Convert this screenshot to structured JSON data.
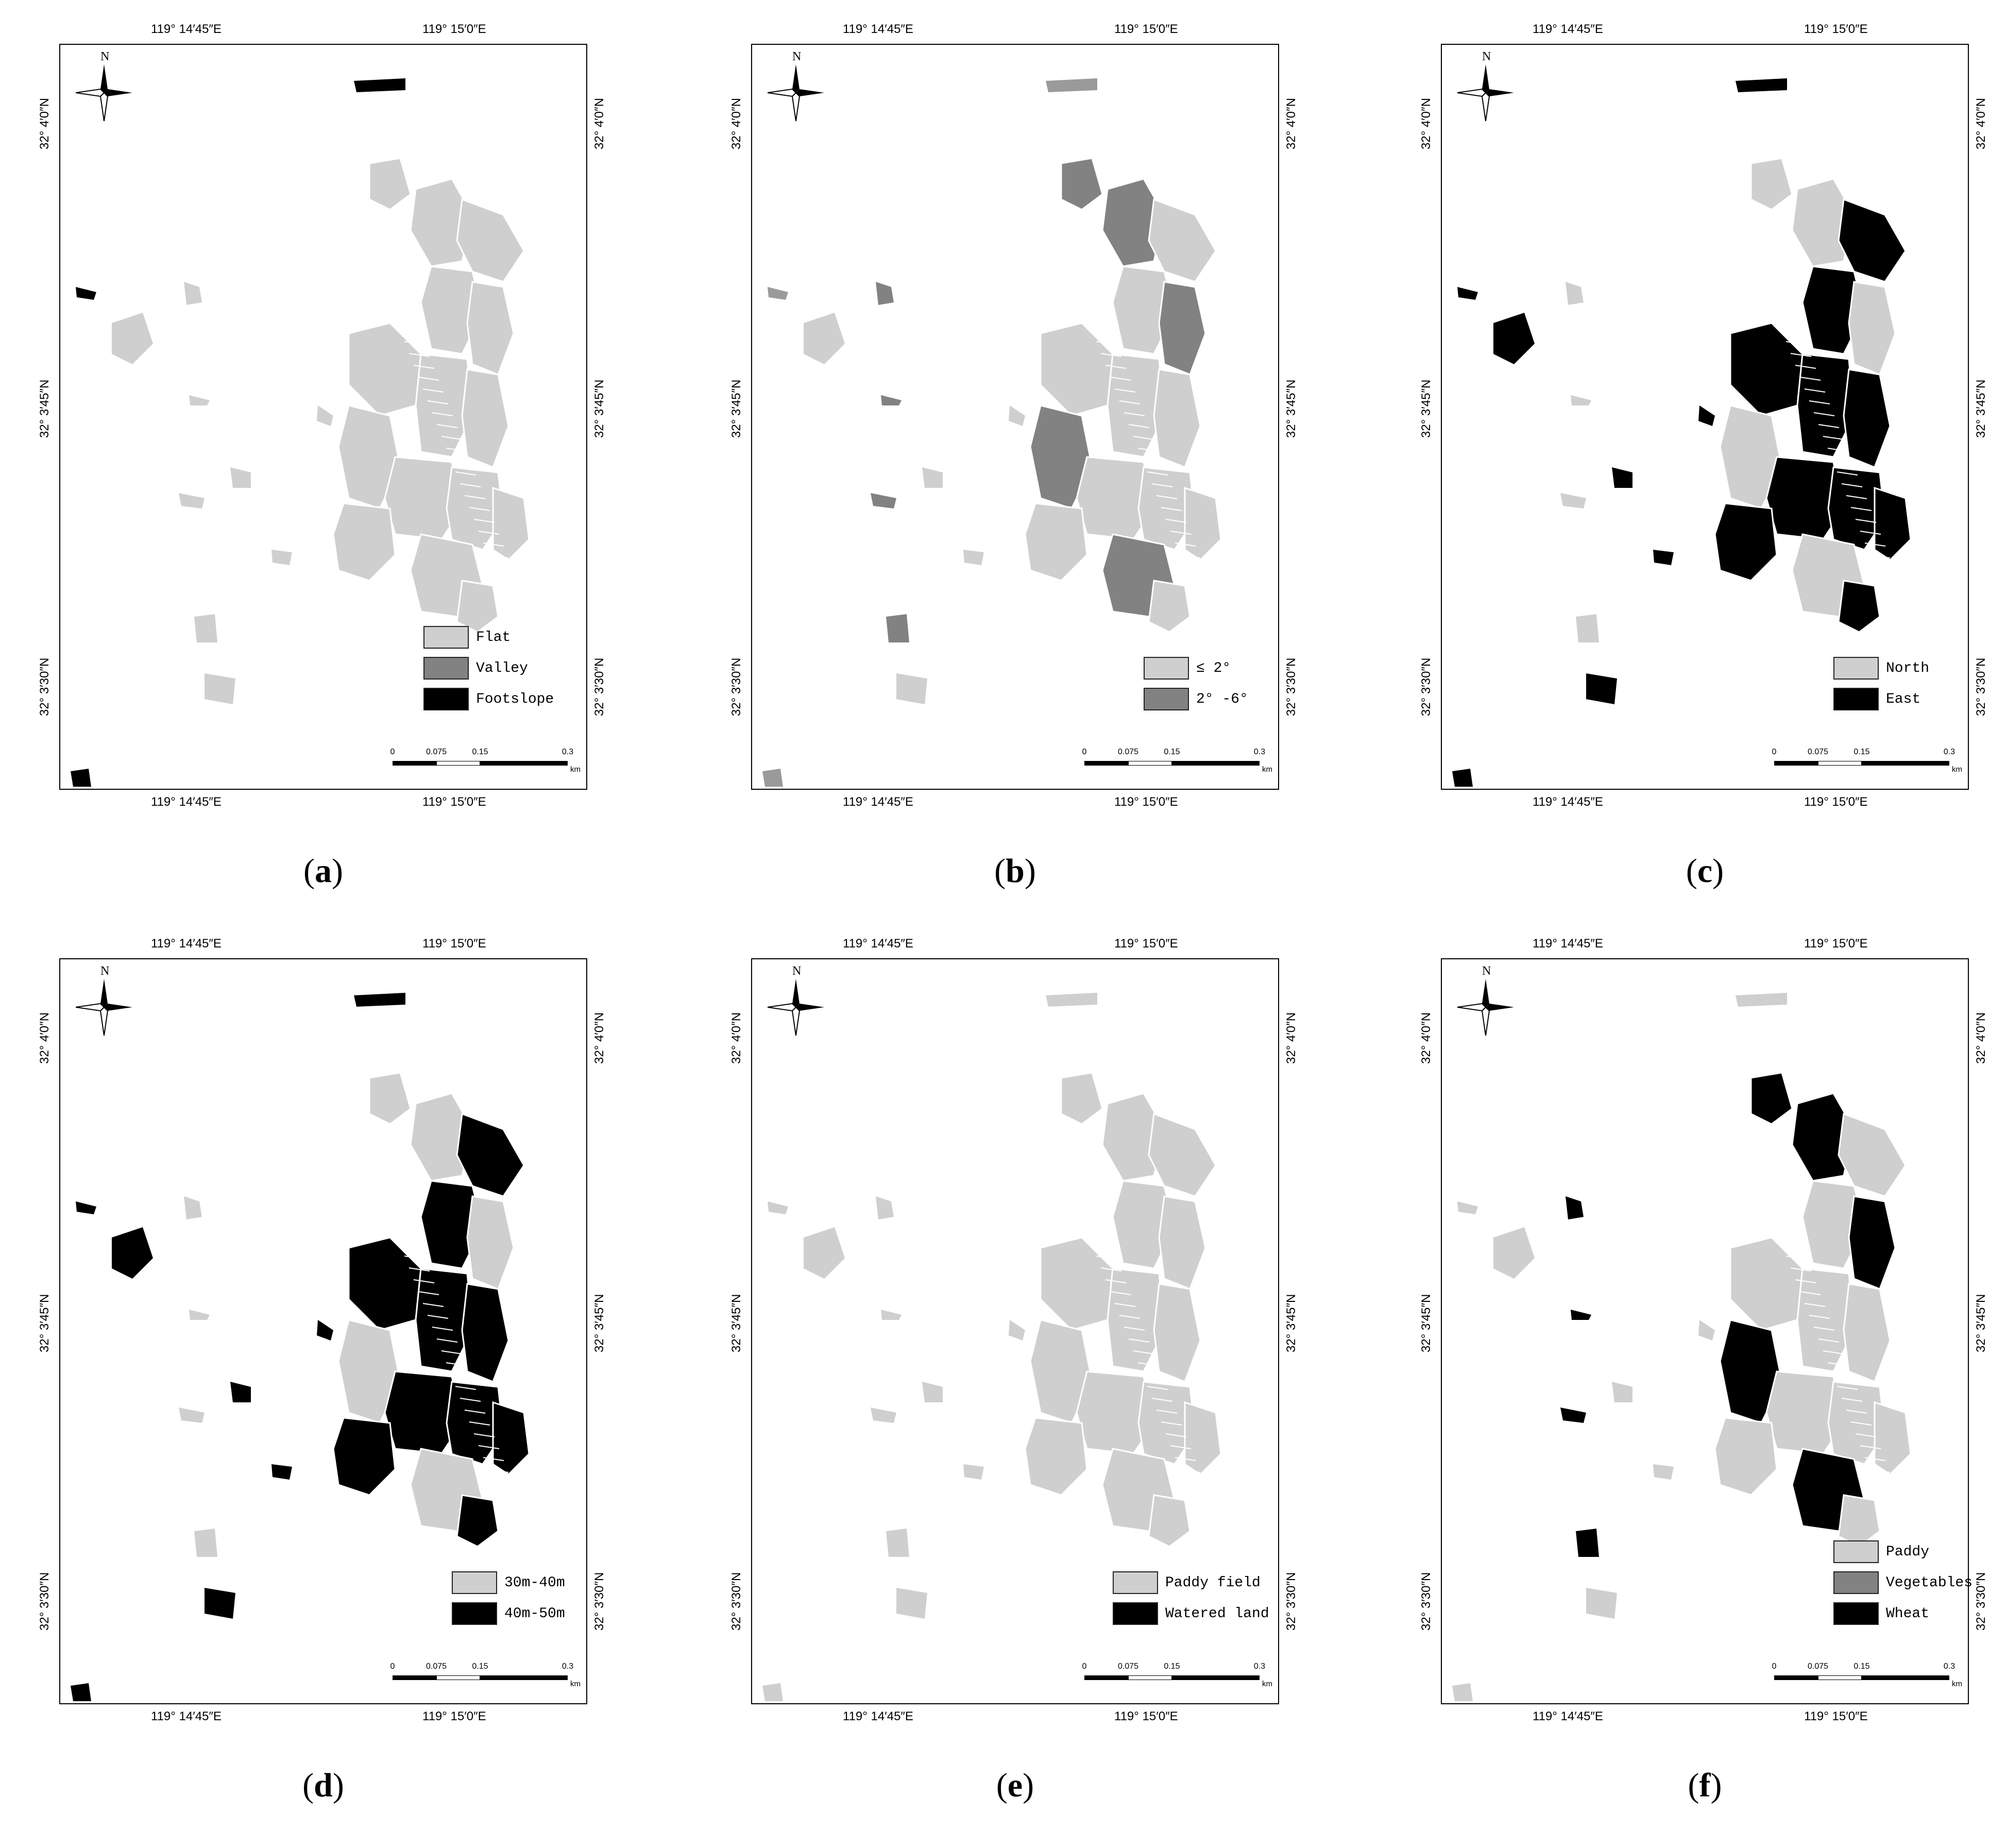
{
  "coordinates": {
    "top_left_lon": "119° 14′45″E",
    "top_right_lon": "119° 15′0″E",
    "lat_top": "32° 4′0″N",
    "lat_mid": "32° 3′45″N",
    "lat_bottom": "32° 3′30″N"
  },
  "compass_label": "N",
  "scale": {
    "ticks": [
      "0",
      "0.075",
      "0.15",
      "0.3"
    ],
    "unit": "km"
  },
  "colors": {
    "light": "#cfcfcf",
    "medium": "#828282",
    "dark": "#000000"
  },
  "panels": [
    {
      "id": "a",
      "caption": "a",
      "legend": [
        {
          "label": "Flat",
          "color": "#cfcfcf"
        },
        {
          "label": "Valley",
          "color": "#828282"
        },
        {
          "label": "Footslope",
          "color": "#000000"
        }
      ],
      "dominant_fill": "#cfcfcf",
      "secondary_fill": "#cfcfcf",
      "north_fill": "#000000"
    },
    {
      "id": "b",
      "caption": "b",
      "legend": [
        {
          "label": "≤ 2°",
          "color": "#cfcfcf"
        },
        {
          "label": "2° -6°",
          "color": "#828282"
        }
      ],
      "dominant_fill": "#cfcfcf",
      "secondary_fill": "#828282",
      "north_fill": "#9a9a9a"
    },
    {
      "id": "c",
      "caption": "c",
      "legend": [
        {
          "label": "North",
          "color": "#cfcfcf"
        },
        {
          "label": "East",
          "color": "#000000"
        }
      ],
      "dominant_fill": "#000000",
      "secondary_fill": "#cfcfcf",
      "north_fill": "#000000"
    },
    {
      "id": "d",
      "caption": "d",
      "legend": [
        {
          "label": "30m-40m",
          "color": "#cfcfcf"
        },
        {
          "label": "40m-50m",
          "color": "#000000"
        }
      ],
      "dominant_fill": "#000000",
      "secondary_fill": "#cfcfcf",
      "north_fill": "#000000"
    },
    {
      "id": "e",
      "caption": "e",
      "legend": [
        {
          "label": "Paddy field",
          "color": "#cfcfcf"
        },
        {
          "label": "Watered land",
          "color": "#000000"
        }
      ],
      "dominant_fill": "#cfcfcf",
      "secondary_fill": "#cfcfcf",
      "north_fill": "#cfcfcf"
    },
    {
      "id": "f",
      "caption": "f",
      "legend": [
        {
          "label": "Paddy",
          "color": "#cfcfcf"
        },
        {
          "label": "Vegetables",
          "color": "#828282"
        },
        {
          "label": "Wheat",
          "color": "#000000"
        }
      ],
      "dominant_fill": "#cfcfcf",
      "secondary_fill": "#000000",
      "north_fill": "#cfcfcf"
    }
  ]
}
